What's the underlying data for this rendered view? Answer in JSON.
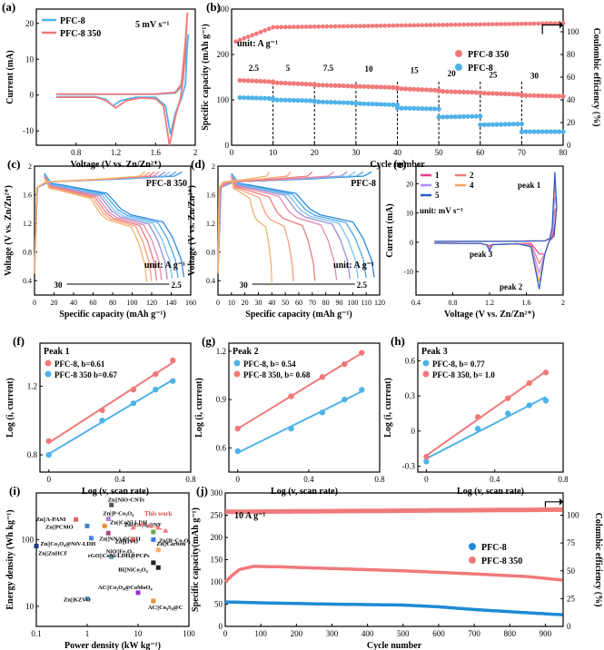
{
  "chart_data": [
    {
      "panel": "(a)",
      "type": "line",
      "xlabel": "Voltage (V vs. Zn/Zn²⁺)",
      "ylabel": "Current (mA)",
      "xlim": [
        0.4,
        2.0
      ],
      "ylim": [
        -14,
        24
      ],
      "xticks": [
        0.8,
        1.2,
        1.6,
        2.0
      ],
      "yticks": [
        -10,
        0,
        10,
        20
      ],
      "annotation": "5 mV s⁻¹",
      "legend_position": "top-left",
      "series": [
        {
          "name": "PFC-8",
          "color": "#4fb3e8",
          "x": [
            0.6,
            1.0,
            1.1,
            1.17,
            1.25,
            1.4,
            1.6,
            1.7,
            1.75,
            1.8,
            1.86,
            1.9,
            1.92,
            1.93,
            1.9,
            1.85,
            1.8,
            1.6,
            1.0,
            0.6
          ],
          "y": [
            -0.5,
            -0.5,
            -1.2,
            -3.0,
            -1.5,
            -0.6,
            -0.6,
            -3.0,
            -11.0,
            -5.0,
            -1.0,
            3.0,
            14.0,
            17.0,
            10.0,
            2.0,
            0.6,
            0.2,
            0.2,
            0.2
          ]
        },
        {
          "name": "PFC-8 350",
          "color": "#f07a7a",
          "x": [
            0.6,
            1.0,
            1.1,
            1.2,
            1.3,
            1.45,
            1.6,
            1.68,
            1.74,
            1.8,
            1.85,
            1.88,
            1.91,
            1.92,
            1.9,
            1.86,
            1.8,
            1.6,
            1.0,
            0.6
          ],
          "y": [
            -0.6,
            -0.6,
            -1.5,
            -3.6,
            -1.6,
            -0.8,
            -1.0,
            -3.0,
            -14.0,
            -6.0,
            -1.0,
            5.0,
            18.0,
            23.0,
            15.0,
            3.0,
            0.8,
            0.3,
            0.3,
            0.3
          ]
        }
      ]
    },
    {
      "panel": "(b)",
      "type": "scatter",
      "xlabel": "Cycle number",
      "ylabel": "Specific capacity (mAh g⁻¹)",
      "y2label": "Coulombic efficiency (%)",
      "xlim": [
        0,
        80
      ],
      "ylim": [
        0,
        300
      ],
      "y2lim": [
        0,
        120
      ],
      "xticks": [
        0,
        10,
        20,
        30,
        40,
        50,
        60,
        70,
        80
      ],
      "yticks": [
        0,
        100,
        200,
        300
      ],
      "y2ticks": [
        0,
        20,
        40,
        60,
        80,
        100
      ],
      "annotation": "unit: A g⁻¹",
      "rate_labels": [
        "2.5",
        "5",
        "7.5",
        "10",
        "15",
        "20",
        "25",
        "30"
      ],
      "series": [
        {
          "name": "PFC-8 350",
          "color": "#f07a7a",
          "segments": [
            [
              2,
              143,
              10,
              140
            ],
            [
              10,
              138,
              20,
              134
            ],
            [
              20,
              133,
              30,
              130
            ],
            [
              30,
              130,
              40,
              127
            ],
            [
              40,
              125,
              50,
              121
            ],
            [
              50,
              119,
              60,
              116
            ],
            [
              60,
              115,
              70,
              112
            ],
            [
              70,
              110,
              80,
              108
            ]
          ]
        },
        {
          "name": "PFC-8",
          "color": "#4fb3e8",
          "segments": [
            [
              2,
              105,
              10,
              103
            ],
            [
              10,
              100,
              20,
              98
            ],
            [
              20,
              96,
              30,
              93
            ],
            [
              30,
              92,
              40,
              89
            ],
            [
              40,
              82,
              50,
              80
            ],
            [
              50,
              62,
              60,
              64
            ],
            [
              60,
              45,
              70,
              47
            ],
            [
              70,
              30,
              80,
              30
            ]
          ]
        },
        {
          "name": "Coulombic efficiency",
          "color": "#f07a7a",
          "ce": [
            [
              1,
              90
            ],
            [
              3,
              96
            ],
            [
              6,
              99
            ],
            [
              10,
              104
            ],
            [
              80,
              108
            ]
          ]
        }
      ]
    },
    {
      "panel": "(c)",
      "type": "line",
      "xlabel": "Specific capacity (mAh g⁻¹)",
      "ylabel": "Voltage (V vs. Zn/Zn²⁺)",
      "xlim": [
        0,
        160
      ],
      "ylim": [
        0.2,
        2.0
      ],
      "xticks": [
        0,
        20,
        40,
        60,
        80,
        100,
        120,
        140,
        160
      ],
      "yticks": [
        0.4,
        0.8,
        1.2,
        1.6,
        2.0
      ],
      "annotation": "PFC-8 350",
      "unit_label": "unit: A g⁻¹",
      "rate_low": "30",
      "rate_high": "2.5",
      "discharge_capacities": [
        143,
        137,
        131,
        126,
        120,
        115,
        110,
        105
      ]
    },
    {
      "panel": "(d)",
      "type": "line",
      "xlabel": "Specific capacity (mAh g⁻¹)",
      "ylabel": "Voltage (V vs. Zn/Zn²⁺)",
      "xlim": [
        0,
        120
      ],
      "ylim": [
        0.2,
        2.0
      ],
      "xticks": [
        0,
        10,
        20,
        30,
        40,
        50,
        60,
        70,
        80,
        90,
        100,
        110,
        120
      ],
      "yticks": [
        0.4,
        0.8,
        1.2,
        1.6,
        2.0
      ],
      "annotation": "PFC-8",
      "unit_label": "unit: A g⁻¹",
      "rate_low": "30",
      "rate_high": "2.5",
      "discharge_capacities": [
        106,
        100,
        94,
        88,
        78,
        62,
        46,
        30
      ]
    },
    {
      "panel": "(e)",
      "type": "line",
      "xlabel": "Voltage (V vs. Zn/Zn²⁺)",
      "ylabel": "Current (mA)",
      "xlim": [
        0.4,
        2.0
      ],
      "ylim": [
        -18,
        26
      ],
      "xticks": [
        0.4,
        0.8,
        1.2,
        1.6,
        2.0
      ],
      "yticks": [
        -10,
        0,
        10,
        20
      ],
      "annotation": "unit: mV s⁻¹",
      "peak_labels": [
        "peak 1",
        "peak 2",
        "peak 3"
      ],
      "series": [
        {
          "name": "1",
          "color": "#e83e8c",
          "scale": 0.25
        },
        {
          "name": "2",
          "color": "#f07a7a",
          "scale": 0.45
        },
        {
          "name": "3",
          "color": "#b388ff",
          "scale": 0.65
        },
        {
          "name": "4",
          "color": "#f4a261",
          "scale": 0.85
        },
        {
          "name": "5",
          "color": "#2b59c3",
          "scale": 1.0
        }
      ]
    },
    {
      "panel": "(f)",
      "type": "scatter",
      "title": "Peak 1",
      "xlabel": "Log (v, scan rate)",
      "ylabel": "Log (i, current)",
      "xlim": [
        -0.05,
        0.8
      ],
      "ylim": [
        0.7,
        1.45
      ],
      "xticks": [
        0.0,
        0.4,
        0.8
      ],
      "yticks": [
        0.8,
        1.2
      ],
      "series": [
        {
          "name": "PFC-8, b=0.61",
          "color": "#f07a7a",
          "x": [
            0,
            0.301,
            0.477,
            0.602,
            0.699
          ],
          "y": [
            0.88,
            1.06,
            1.18,
            1.27,
            1.35
          ]
        },
        {
          "name": "PFC-8 350 b=0.67",
          "color": "#4fb3e8",
          "x": [
            0,
            0.301,
            0.477,
            0.602,
            0.699
          ],
          "y": [
            0.8,
            1.0,
            1.1,
            1.18,
            1.23
          ]
        }
      ]
    },
    {
      "panel": "(g)",
      "type": "scatter",
      "title": "Peak 2",
      "xlabel": "Log (v, scan rate)",
      "ylabel": "Log (i, current)",
      "xlim": [
        -0.05,
        0.8
      ],
      "ylim": [
        0.45,
        1.25
      ],
      "xticks": [
        0.0,
        0.4,
        0.8
      ],
      "yticks": [
        0.6,
        0.9,
        1.2
      ],
      "series": [
        {
          "name": "PFC-8, b= 0.54",
          "color": "#4fb3e8",
          "x": [
            0,
            0.301,
            0.477,
            0.602,
            0.699
          ],
          "y": [
            0.58,
            0.72,
            0.82,
            0.9,
            0.96
          ]
        },
        {
          "name": "PFC-8 350, b= 0.68",
          "color": "#f07a7a",
          "x": [
            0,
            0.301,
            0.477,
            0.602,
            0.699
          ],
          "y": [
            0.72,
            0.92,
            1.04,
            1.12,
            1.19
          ]
        }
      ]
    },
    {
      "panel": "(h)",
      "type": "scatter",
      "title": "Peak 3",
      "xlabel": "Log (v, scan rate)",
      "ylabel": "Log (i, current)",
      "xlim": [
        -0.05,
        0.8
      ],
      "ylim": [
        -0.35,
        0.75
      ],
      "xticks": [
        0.0,
        0.4,
        0.8
      ],
      "yticks": [
        -0.3,
        0.0,
        0.3,
        0.6
      ],
      "series": [
        {
          "name": "PFC-8, b= 0.77",
          "color": "#4fb3e8",
          "x": [
            0,
            0.301,
            0.477,
            0.602,
            0.699
          ],
          "y": [
            -0.26,
            0.02,
            0.15,
            0.22,
            0.26
          ]
        },
        {
          "name": "PFC-8 350, b= 1.0",
          "color": "#f07a7a",
          "x": [
            0,
            0.301,
            0.477,
            0.602,
            0.699
          ],
          "y": [
            -0.22,
            0.12,
            0.28,
            0.41,
            0.5
          ]
        }
      ]
    },
    {
      "panel": "(i)",
      "type": "scatter",
      "xlabel": "Power density (kW kg⁻¹)",
      "ylabel": "Energy density (Wh kg⁻¹)",
      "xscale": "log",
      "yscale": "log",
      "xlim": [
        0.1,
        100
      ],
      "ylim": [
        5,
        500
      ],
      "xticks": [
        0.1,
        1,
        10,
        100
      ],
      "yticks": [
        10,
        100
      ],
      "this_work_label": "This work",
      "points": [
        {
          "label": "Zn||NiO-CNTs",
          "x": 3.0,
          "y": 330,
          "color": "#555555"
        },
        {
          "label": "Zn||A-PANI",
          "x": 0.6,
          "y": 200,
          "color": "#e06666"
        },
        {
          "label": "Zn||P-Co₃O₄",
          "x": 2.6,
          "y": 205,
          "color": "#b084d9"
        },
        {
          "label": "Zn||PCMO",
          "x": 1.0,
          "y": 160,
          "color": "#3d85c6"
        },
        {
          "label": "Zn||CoNi LDH",
          "x": 2.2,
          "y": 160,
          "color": "#e69138"
        },
        {
          "label": "Zn||NNA@CNH",
          "x": 2.6,
          "y": 125,
          "color": "#a64d79"
        },
        {
          "label": "Zn||Co₂S₈@NF",
          "x": 20,
          "y": 130,
          "color": "#6aa84f"
        },
        {
          "label": "Zn||Co₃O₄@NiV-LDH",
          "x": 1.2,
          "y": 105,
          "color": "#4a86e8"
        },
        {
          "label": "Zn||HVO",
          "x": 8,
          "y": 100,
          "color": "#e06666"
        },
        {
          "label": "Zn||R-Co₃O₄",
          "x": 20,
          "y": 100,
          "color": "#3c78d8"
        },
        {
          "label": "Zn||ZnHCF",
          "x": 0.1,
          "y": 80,
          "color": "#1c3a8a"
        },
        {
          "label": "Zn||Carbon",
          "x": 25,
          "y": 70,
          "color": "#f6b26b"
        },
        {
          "label": "NiO||Fe₃O₄",
          "x": 3,
          "y": 55,
          "color": "#76a5af"
        },
        {
          "label": "rGO||CoNi-LDH@PCPs",
          "x": 20,
          "y": 45,
          "color": "#222222"
        },
        {
          "label": "Bi||NiCo₂O₄",
          "x": 25,
          "y": 38,
          "color": "#222222"
        },
        {
          "label": "AC||Co₃O₄@CoMoO₄",
          "x": 10,
          "y": 16,
          "color": "#9933cc"
        },
        {
          "label": "Zn||KZVO",
          "x": 1.0,
          "y": 13,
          "color": "#6fa8dc"
        },
        {
          "label": "AC||Co₉S₈@C",
          "x": 20,
          "y": 12,
          "color": "#e69138"
        }
      ]
    },
    {
      "panel": "(j)",
      "type": "scatter",
      "xlabel": "Cycle number",
      "ylabel": "Specific capacity(mAh g⁻¹)",
      "y2label": "Columbic efficiency (%)",
      "xlim": [
        0,
        950
      ],
      "ylim": [
        0,
        300
      ],
      "y2lim": [
        0,
        120
      ],
      "xticks": [
        0,
        100,
        200,
        300,
        400,
        500,
        600,
        700,
        800,
        900
      ],
      "yticks": [
        0,
        50,
        100,
        150,
        200,
        250,
        300
      ],
      "y2ticks": [
        0,
        25,
        50,
        75,
        100
      ],
      "annotation": "10 A g⁻¹",
      "legend_position": "right",
      "series": [
        {
          "name": "PFC-8",
          "color": "#1f8ad6",
          "x": [
            0,
            100,
            300,
            500,
            600,
            700,
            800,
            950
          ],
          "y": [
            55,
            53,
            50,
            48,
            44,
            38,
            33,
            26
          ]
        },
        {
          "name": "PFC-8 350",
          "color": "#f07a7a",
          "x": [
            0,
            20,
            40,
            80,
            150,
            300,
            500,
            700,
            850,
            950
          ],
          "y": [
            100,
            115,
            128,
            135,
            134,
            130,
            125,
            118,
            112,
            104
          ]
        },
        {
          "name": "CE",
          "color": "#f07a7a",
          "x": [
            0,
            950
          ],
          "y": [
            103,
            105
          ]
        }
      ]
    }
  ]
}
